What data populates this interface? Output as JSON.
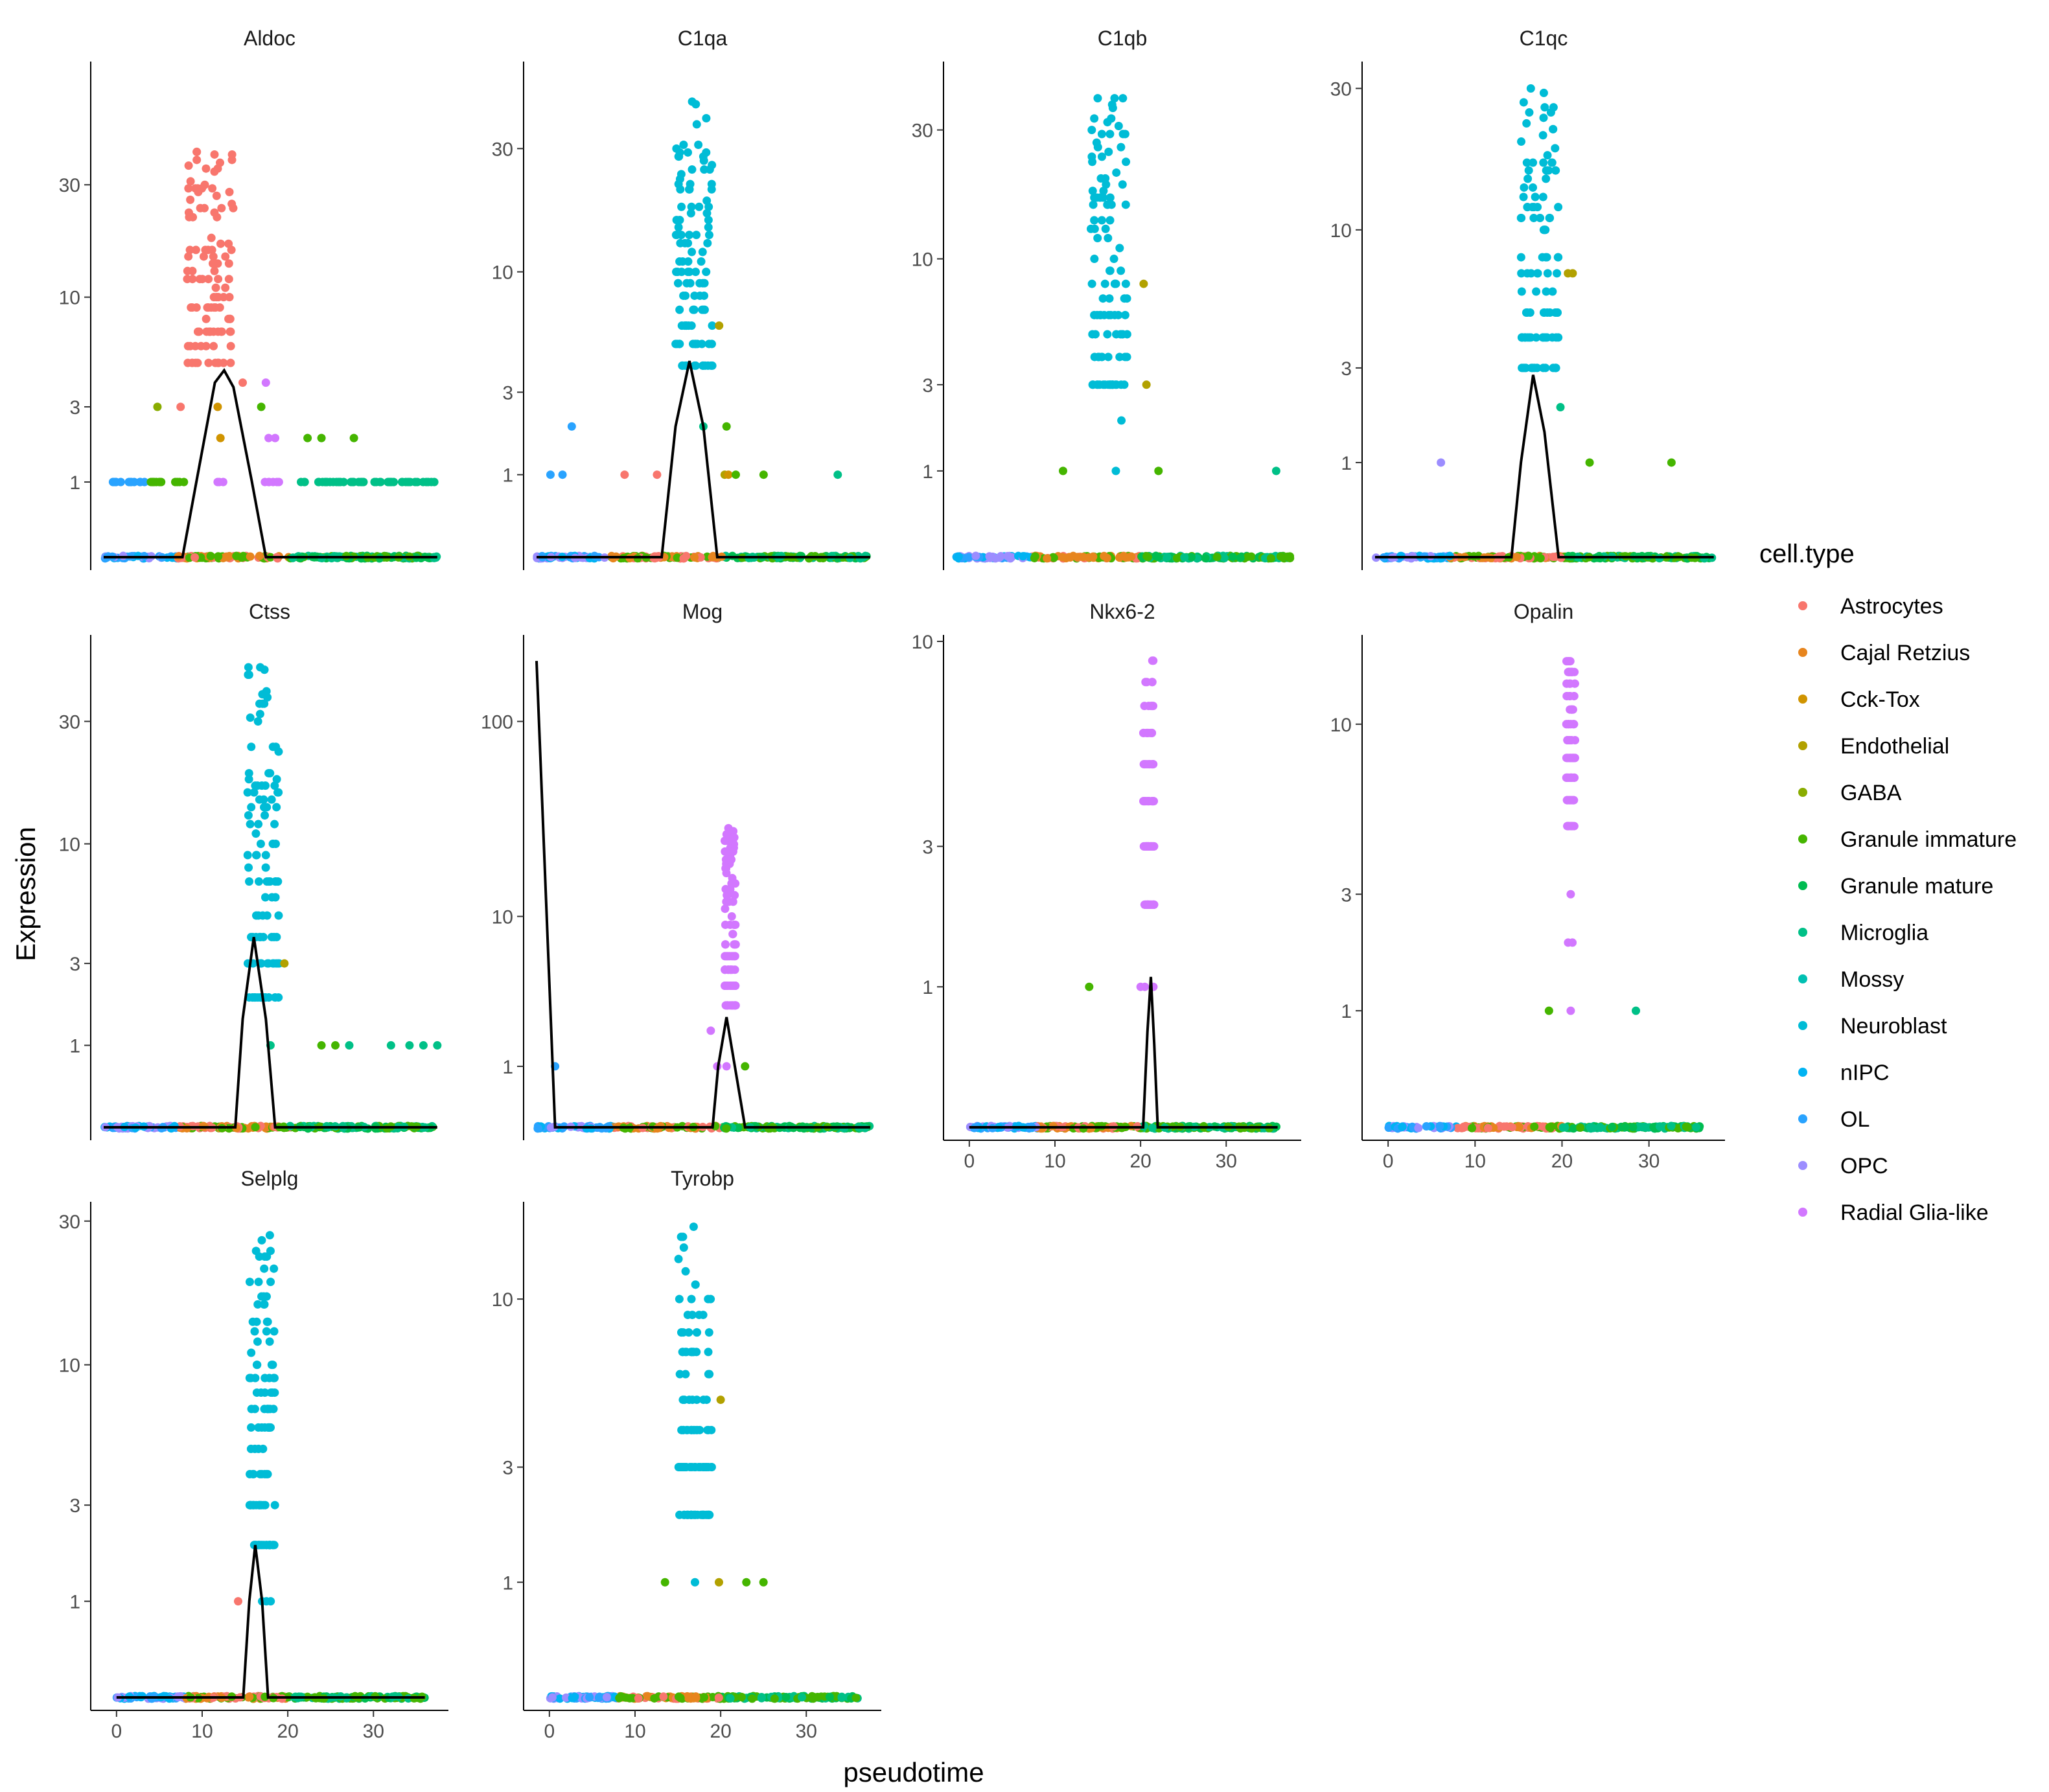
{
  "figure": {
    "xlabel": "pseudotime",
    "ylabel": "Expression"
  },
  "legend": {
    "title": "cell.type",
    "placement": "right",
    "items": [
      {
        "label": "Astrocytes",
        "color": "#F8766D"
      },
      {
        "label": "Cajal Retzius",
        "color": "#E7851E"
      },
      {
        "label": "Cck-Tox",
        "color": "#D09400"
      },
      {
        "label": "Endothelial",
        "color": "#B2A100"
      },
      {
        "label": "GABA",
        "color": "#89AC00"
      },
      {
        "label": "Granule immature",
        "color": "#45B500"
      },
      {
        "label": "Granule mature",
        "color": "#00BC51"
      },
      {
        "label": "Microglia",
        "color": "#00C087"
      },
      {
        "label": "Mossy",
        "color": "#00C0B2"
      },
      {
        "label": "Neuroblast",
        "color": "#00BCD6"
      },
      {
        "label": "nIPC",
        "color": "#00B3F2"
      },
      {
        "label": "OL",
        "color": "#29A3FF"
      },
      {
        "label": "OPC",
        "color": "#9C8DFF"
      },
      {
        "label": "Radial Glia-like",
        "color": "#D277FF"
      }
    ]
  },
  "chart_data": [
    {
      "type": "scatter",
      "title": "Aldoc",
      "xlim": [
        0,
        36.5
      ],
      "ylim": [
        0,
        90
      ],
      "ytick_values": [
        1,
        3,
        10,
        30
      ],
      "ytick_labels": [
        "1",
        "3",
        "10",
        "30"
      ],
      "xtick_values": [],
      "xtick_labels": [],
      "curve": [
        [
          0,
          0
        ],
        [
          8.5,
          0
        ],
        [
          10,
          1
        ],
        [
          12,
          4
        ],
        [
          13,
          4.6
        ],
        [
          14,
          3.8
        ],
        [
          16,
          1
        ],
        [
          17.5,
          0
        ],
        [
          36,
          0
        ]
      ],
      "dominant": {
        "color": "#F8766D",
        "x": [
          9,
          14
        ],
        "y": [
          5,
          45
        ]
      },
      "extra_points": [
        [
          5.8,
          3,
          "#89AC00"
        ],
        [
          12.3,
          3,
          "#D09400"
        ],
        [
          12.6,
          2,
          "#D09400"
        ],
        [
          17,
          3,
          "#45B500"
        ],
        [
          17.5,
          4,
          "#D277FF"
        ],
        [
          17.8,
          2,
          "#D277FF"
        ],
        [
          18.5,
          2,
          "#D277FF"
        ],
        [
          22,
          2,
          "#45B500"
        ],
        [
          23.5,
          2,
          "#45B500"
        ],
        [
          27,
          2,
          "#45B500"
        ],
        [
          8.3,
          3,
          "#F8766D"
        ],
        [
          15,
          4,
          "#F8766D"
        ]
      ],
      "ones": [
        [
          1,
          5,
          "#29A3FF"
        ],
        [
          5,
          9,
          "#45B500"
        ],
        [
          12,
          13,
          "#D277FF"
        ],
        [
          17,
          19,
          "#D277FF"
        ],
        [
          21,
          36,
          "#00C087"
        ]
      ]
    },
    {
      "type": "scatter",
      "title": "C1qa",
      "xlim": [
        0,
        36.5
      ],
      "ylim": [
        0,
        60
      ],
      "ytick_values": [
        1,
        3,
        10,
        30
      ],
      "ytick_labels": [
        "1",
        "3",
        "10",
        "30"
      ],
      "xtick_values": [],
      "xtick_labels": [],
      "curve": [
        [
          0,
          0
        ],
        [
          13.5,
          0
        ],
        [
          15,
          2
        ],
        [
          16.5,
          4.2
        ],
        [
          18,
          2
        ],
        [
          19.5,
          0
        ],
        [
          36,
          0
        ]
      ],
      "dominant": {
        "color": "#00BCD6",
        "x": [
          15,
          19
        ],
        "y": [
          4,
          45
        ]
      },
      "extra_points": [
        [
          19.7,
          6,
          "#B2A100"
        ],
        [
          18,
          2,
          "#00C087"
        ],
        [
          20.5,
          2,
          "#45B500"
        ],
        [
          3.8,
          2,
          "#29A3FF"
        ],
        [
          1.5,
          1,
          "#29A3FF"
        ],
        [
          2.8,
          1,
          "#29A3FF"
        ],
        [
          9.5,
          1,
          "#F8766D"
        ],
        [
          13,
          1,
          "#F8766D"
        ],
        [
          20.3,
          1,
          "#B2A100"
        ],
        [
          20.7,
          1,
          "#D09400"
        ],
        [
          21.5,
          1,
          "#45B500"
        ],
        [
          24.5,
          1,
          "#45B500"
        ],
        [
          32.5,
          1,
          "#00C087"
        ]
      ],
      "ones": []
    },
    {
      "type": "scatter",
      "title": "C1qb",
      "xlim": [
        0,
        36.5
      ],
      "ylim": [
        0,
        50
      ],
      "ytick_values": [
        1,
        3,
        10,
        30
      ],
      "ytick_labels": [
        "1",
        "3",
        "10",
        "30"
      ],
      "xtick_values": [],
      "xtick_labels": [],
      "curve": [],
      "dominant": {
        "color": "#00BCD6",
        "x": [
          14.5,
          18.5
        ],
        "y": [
          3,
          40
        ]
      },
      "extra_points": [
        [
          20.2,
          8,
          "#B2A100"
        ],
        [
          20.5,
          3,
          "#B2A100"
        ],
        [
          17.8,
          2,
          "#00BCD6"
        ],
        [
          11.5,
          1,
          "#45B500"
        ],
        [
          17.2,
          1,
          "#00BCD6"
        ],
        [
          21.8,
          1,
          "#45B500"
        ],
        [
          34.5,
          1,
          "#00C087"
        ]
      ],
      "ones": []
    },
    {
      "type": "scatter",
      "title": "C1qc",
      "xlim": [
        0,
        36.5
      ],
      "ylim": [
        0,
        35
      ],
      "ytick_values": [
        1,
        3,
        10,
        30
      ],
      "ytick_labels": [
        "1",
        "3",
        "10",
        "30"
      ],
      "xtick_values": [],
      "xtick_labels": [],
      "curve": [
        [
          0,
          0
        ],
        [
          14.5,
          0
        ],
        [
          15.5,
          1
        ],
        [
          16.8,
          2.8
        ],
        [
          18,
          1.5
        ],
        [
          19.5,
          0
        ],
        [
          36,
          0
        ]
      ],
      "dominant": {
        "color": "#00BCD6",
        "x": [
          15.5,
          19.5
        ],
        "y": [
          3,
          30
        ]
      },
      "extra_points": [
        [
          20.5,
          7,
          "#B2A100"
        ],
        [
          21,
          7,
          "#B2A100"
        ],
        [
          19.7,
          2,
          "#00C087"
        ],
        [
          7,
          1,
          "#9C8DFF"
        ],
        [
          22.8,
          1,
          "#45B500"
        ],
        [
          31.5,
          1,
          "#45B500"
        ]
      ],
      "ones": []
    },
    {
      "type": "scatter",
      "title": "Ctss",
      "xlim": [
        0,
        36.5
      ],
      "ylim": [
        0,
        60
      ],
      "ytick_values": [
        1,
        3,
        10,
        30
      ],
      "ytick_labels": [
        "1",
        "3",
        "10",
        "30"
      ],
      "xtick_values": [],
      "xtick_labels": [],
      "curve": [
        [
          0,
          0
        ],
        [
          14.2,
          0
        ],
        [
          15,
          1.5
        ],
        [
          16.2,
          4
        ],
        [
          17.5,
          1.5
        ],
        [
          18.5,
          0
        ],
        [
          36,
          0
        ]
      ],
      "dominant": {
        "color": "#00BCD6",
        "x": [
          15.5,
          19
        ],
        "y": [
          2,
          48
        ]
      },
      "extra_points": [
        [
          19.5,
          3,
          "#B2A100"
        ],
        [
          18,
          1,
          "#00C087"
        ],
        [
          23.5,
          1,
          "#45B500"
        ],
        [
          25,
          1,
          "#45B500"
        ],
        [
          26.5,
          1,
          "#00C087"
        ],
        [
          31,
          1,
          "#00C087"
        ],
        [
          33,
          1,
          "#00C087"
        ],
        [
          34.5,
          1,
          "#00C087"
        ],
        [
          36,
          1,
          "#00C087"
        ]
      ],
      "ones": []
    },
    {
      "type": "scatter",
      "title": "Mog",
      "xlim": [
        0,
        36.5
      ],
      "ylim": [
        0,
        250
      ],
      "ytick_values": [
        1,
        10,
        100
      ],
      "ytick_labels": [
        "1",
        "10",
        "100"
      ],
      "xtick_values": [],
      "xtick_labels": [],
      "curve": [
        [
          0,
          200
        ],
        [
          2,
          0
        ],
        [
          19,
          0
        ],
        [
          19.6,
          1
        ],
        [
          20.5,
          2.5
        ],
        [
          21.4,
          1
        ],
        [
          22.5,
          0
        ],
        [
          36,
          0
        ]
      ],
      "dominant": {
        "color": "#D277FF",
        "x": [
          20.3,
          21.5
        ],
        "y": [
          3,
          30
        ]
      },
      "extra_points": [
        [
          2,
          1,
          "#29A3FF"
        ],
        [
          18.8,
          2,
          "#D277FF"
        ],
        [
          19.5,
          1,
          "#D277FF"
        ],
        [
          20.5,
          1,
          "#D277FF"
        ],
        [
          22.5,
          1,
          "#45B500"
        ]
      ],
      "ones": []
    },
    {
      "type": "scatter",
      "title": "Nkx6-2",
      "xlim": [
        -1.5,
        38
      ],
      "ylim": [
        0,
        10
      ],
      "ytick_values": [
        1,
        3,
        10
      ],
      "ytick_labels": [
        "1",
        "3",
        "10"
      ],
      "xtick_values": [
        0,
        10,
        20,
        30
      ],
      "xtick_labels": [
        "0",
        "10",
        "20",
        "30"
      ],
      "curve": [
        [
          0,
          0
        ],
        [
          20.3,
          0
        ],
        [
          20.8,
          0.6
        ],
        [
          21.2,
          1.1
        ],
        [
          21.6,
          0.5
        ],
        [
          22,
          0
        ],
        [
          36,
          0
        ]
      ],
      "dominant": {
        "color": "#D277FF",
        "x": [
          20.3,
          21.6
        ],
        "y": [
          2,
          9
        ]
      },
      "extra_points": [
        [
          14,
          1,
          "#45B500"
        ],
        [
          20,
          1,
          "#D277FF"
        ],
        [
          20.5,
          1,
          "#D277FF"
        ],
        [
          21.5,
          1,
          "#D277FF"
        ]
      ],
      "ones": []
    },
    {
      "type": "scatter",
      "title": "Opalin",
      "xlim": [
        -1.5,
        38
      ],
      "ylim": [
        0,
        17
      ],
      "ytick_values": [
        1,
        3,
        10
      ],
      "ytick_labels": [
        "1",
        "3",
        "10"
      ],
      "xtick_values": [
        0,
        10,
        20,
        30
      ],
      "xtick_labels": [
        "0",
        "10",
        "20",
        "30"
      ],
      "curve": [],
      "dominant": {
        "color": "#D277FF",
        "x": [
          20.5,
          21.5
        ],
        "y": [
          5,
          15
        ]
      },
      "extra_points": [
        [
          18.5,
          1,
          "#45B500"
        ],
        [
          21,
          1,
          "#D277FF"
        ],
        [
          28.5,
          1,
          "#00C087"
        ],
        [
          20.7,
          2,
          "#D277FF"
        ],
        [
          21.2,
          2,
          "#D277FF"
        ],
        [
          21,
          3,
          "#D277FF"
        ]
      ],
      "ones": []
    },
    {
      "type": "scatter",
      "title": "Selplg",
      "xlim": [
        -1.5,
        38
      ],
      "ylim": [
        0,
        33
      ],
      "ytick_values": [
        1,
        3,
        10,
        30
      ],
      "ytick_labels": [
        "1",
        "3",
        "10",
        "30"
      ],
      "xtick_values": [
        0,
        10,
        20,
        30
      ],
      "xtick_labels": [
        "0",
        "10",
        "20",
        "30"
      ],
      "curve": [
        [
          0,
          0
        ],
        [
          14.8,
          0
        ],
        [
          15.5,
          1
        ],
        [
          16.2,
          2
        ],
        [
          17,
          1
        ],
        [
          17.7,
          0
        ],
        [
          36,
          0
        ]
      ],
      "dominant": {
        "color": "#00BCD6",
        "x": [
          15.5,
          18.5
        ],
        "y": [
          2,
          28
        ]
      },
      "extra_points": [
        [
          14.2,
          1,
          "#F8766D"
        ],
        [
          17,
          1,
          "#00BCD6"
        ],
        [
          17.5,
          1,
          "#00BCD6"
        ],
        [
          18,
          1,
          "#00BCD6"
        ]
      ],
      "ones": []
    },
    {
      "type": "scatter",
      "title": "Tyrobp",
      "xlim": [
        -1.5,
        38
      ],
      "ylim": [
        0,
        18
      ],
      "ytick_values": [
        1,
        3,
        10
      ],
      "ytick_labels": [
        "1",
        "3",
        "10"
      ],
      "xtick_values": [
        0,
        10,
        20,
        30
      ],
      "xtick_labels": [
        "0",
        "10",
        "20",
        "30"
      ],
      "curve": [],
      "dominant": {
        "color": "#00BCD6",
        "x": [
          15,
          19
        ],
        "y": [
          2,
          16
        ]
      },
      "extra_points": [
        [
          20,
          5,
          "#B2A100"
        ],
        [
          13.5,
          1,
          "#45B500"
        ],
        [
          17,
          1,
          "#00BCD6"
        ],
        [
          19.8,
          1,
          "#B2A100"
        ],
        [
          23,
          1,
          "#45B500"
        ],
        [
          25,
          1,
          "#45B500"
        ]
      ],
      "ones": []
    }
  ]
}
